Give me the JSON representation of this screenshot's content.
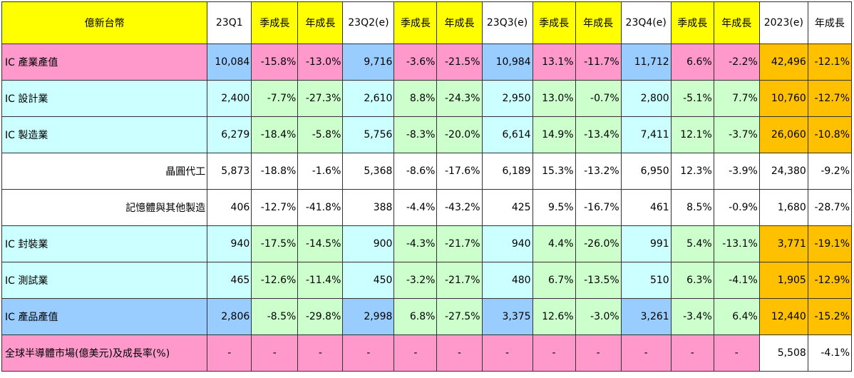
{
  "table": {
    "header": [
      "億新台幣",
      "23Q1",
      "季成長",
      "年成長",
      "23Q2(e)",
      "季成長",
      "年成長",
      "23Q3(e)",
      "季成長",
      "年成長",
      "23Q4(e)",
      "季成長",
      "年成長",
      "2023(e)",
      "年成長"
    ],
    "rows": [
      [
        "IC 產業產值",
        "10,084",
        "-15.8%",
        "-13.0%",
        "9,716",
        "-3.6%",
        "-21.5%",
        "10,984",
        "13.1%",
        "-11.7%",
        "11,712",
        "6.6%",
        "-2.2%",
        "42,496",
        "-12.1%"
      ],
      [
        "IC 設計業",
        "2,400",
        "-7.7%",
        "-27.3%",
        "2,610",
        "8.8%",
        "-24.3%",
        "2,950",
        "13.0%",
        "-0.7%",
        "2,800",
        "-5.1%",
        "7.7%",
        "10,760",
        "-12.7%"
      ],
      [
        "IC 製造業",
        "6,279",
        "-18.4%",
        "-5.8%",
        "5,756",
        "-8.3%",
        "-20.0%",
        "6,614",
        "14.9%",
        "-13.4%",
        "7,411",
        "12.1%",
        "-3.7%",
        "26,060",
        "-10.8%"
      ],
      [
        "晶圓代工",
        "5,873",
        "-18.8%",
        "-1.6%",
        "5,368",
        "-8.6%",
        "-17.6%",
        "6,189",
        "15.3%",
        "-13.2%",
        "6,950",
        "12.3%",
        "-3.9%",
        "24,380",
        "-9.2%"
      ],
      [
        "記憶體與其他製造",
        "406",
        "-12.7%",
        "-41.8%",
        "388",
        "-4.4%",
        "-43.2%",
        "425",
        "9.5%",
        "-16.7%",
        "461",
        "8.5%",
        "-0.9%",
        "1,680",
        "-28.7%"
      ],
      [
        "IC 封裝業",
        "940",
        "-17.5%",
        "-14.5%",
        "900",
        "-4.3%",
        "-21.7%",
        "940",
        "4.4%",
        "-26.0%",
        "991",
        "5.4%",
        "-13.1%",
        "3,771",
        "-19.1%"
      ],
      [
        "IC 測試業",
        "465",
        "-12.6%",
        "-11.4%",
        "450",
        "-3.2%",
        "-21.7%",
        "480",
        "6.7%",
        "-13.5%",
        "510",
        "6.3%",
        "-4.1%",
        "1,905",
        "-12.9%"
      ],
      [
        "IC 產品產值",
        "2,806",
        "-8.5%",
        "-29.8%",
        "2,998",
        "6.8%",
        "-27.5%",
        "3,375",
        "12.6%",
        "-3.0%",
        "3,261",
        "-3.4%",
        "6.4%",
        "12,440",
        "-15.2%"
      ],
      [
        "全球半導體市場(億美元)及成長率(%)",
        "-",
        "-",
        "-",
        "-",
        "-",
        "-",
        "-",
        "-",
        "-",
        "-",
        "-",
        "-",
        "5,508",
        "-4.1%"
      ]
    ]
  }
}
